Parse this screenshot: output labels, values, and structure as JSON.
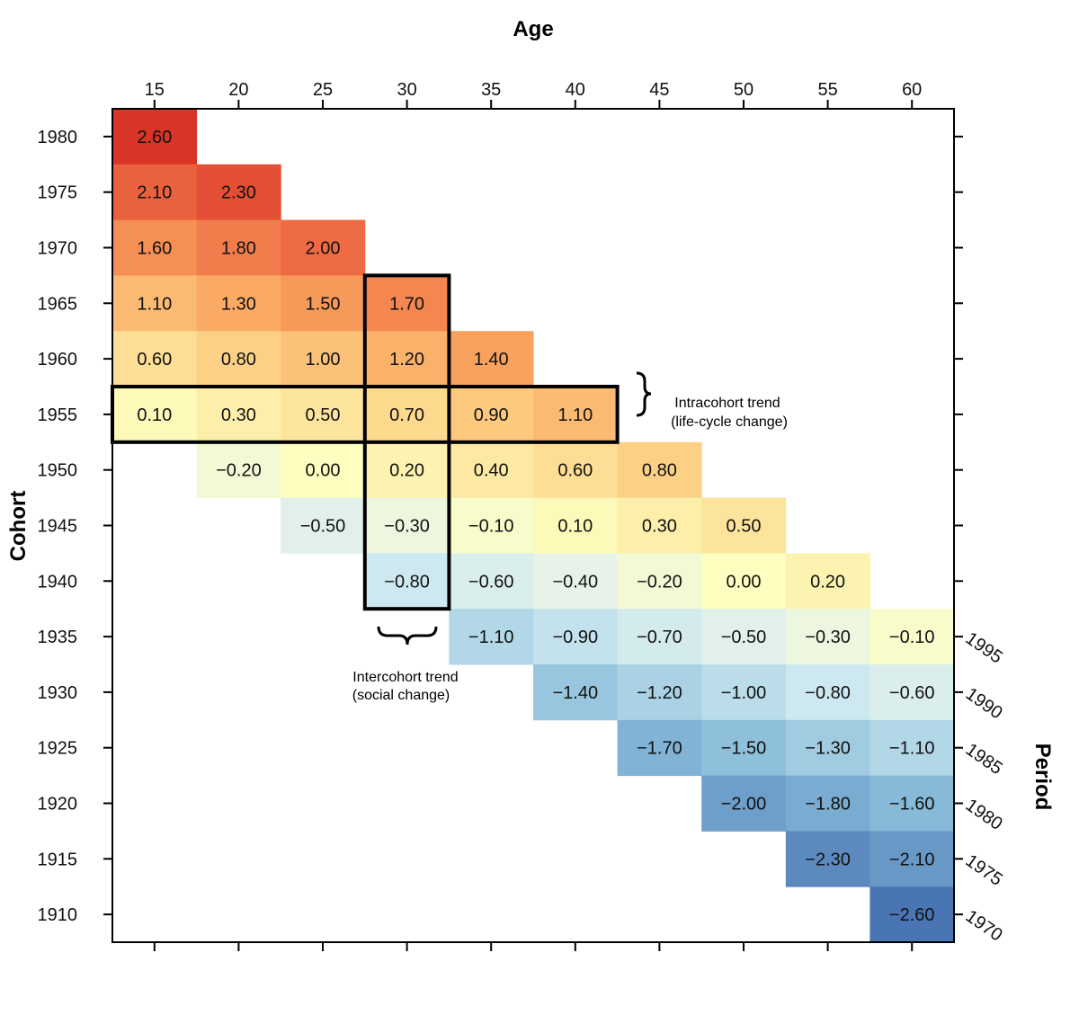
{
  "chart_data": {
    "type": "heatmap",
    "xlabel": "Age",
    "ylabel": "Cohort",
    "right_label": "Period",
    "ages": [
      15,
      20,
      25,
      30,
      35,
      40,
      45,
      50,
      55,
      60
    ],
    "cohorts": [
      1980,
      1975,
      1970,
      1965,
      1960,
      1955,
      1950,
      1945,
      1940,
      1935,
      1930,
      1925,
      1920,
      1915,
      1910
    ],
    "periods": [
      1995,
      1990,
      1985,
      1980,
      1975,
      1970
    ],
    "values": [
      [
        "2.60",
        null,
        null,
        null,
        null,
        null,
        null,
        null,
        null,
        null
      ],
      [
        "2.10",
        "2.30",
        null,
        null,
        null,
        null,
        null,
        null,
        null,
        null
      ],
      [
        "1.60",
        "1.80",
        "2.00",
        null,
        null,
        null,
        null,
        null,
        null,
        null
      ],
      [
        "1.10",
        "1.30",
        "1.50",
        "1.70",
        null,
        null,
        null,
        null,
        null,
        null
      ],
      [
        "0.60",
        "0.80",
        "1.00",
        "1.20",
        "1.40",
        null,
        null,
        null,
        null,
        null
      ],
      [
        "0.10",
        "0.30",
        "0.50",
        "0.70",
        "0.90",
        "1.10",
        null,
        null,
        null,
        null
      ],
      [
        null,
        "−0.20",
        "0.00",
        "0.20",
        "0.40",
        "0.60",
        "0.80",
        null,
        null,
        null
      ],
      [
        null,
        null,
        "−0.50",
        "−0.30",
        "−0.10",
        "0.10",
        "0.30",
        "0.50",
        null,
        null
      ],
      [
        null,
        null,
        null,
        "−0.80",
        "−0.60",
        "−0.40",
        "−0.20",
        "0.00",
        "0.20",
        null
      ],
      [
        null,
        null,
        null,
        null,
        "−1.10",
        "−0.90",
        "−0.70",
        "−0.50",
        "−0.30",
        "−0.10"
      ],
      [
        null,
        null,
        null,
        null,
        null,
        "−1.40",
        "−1.20",
        "−1.00",
        "−0.80",
        "−0.60"
      ],
      [
        null,
        null,
        null,
        null,
        null,
        null,
        "−1.70",
        "−1.50",
        "−1.30",
        "−1.10"
      ],
      [
        null,
        null,
        null,
        null,
        null,
        null,
        null,
        "−2.00",
        "−1.80",
        "−1.60"
      ],
      [
        null,
        null,
        null,
        null,
        null,
        null,
        null,
        null,
        "−2.30",
        "−2.10"
      ],
      [
        null,
        null,
        null,
        null,
        null,
        null,
        null,
        null,
        null,
        "−2.60"
      ]
    ],
    "color_scale": {
      "stops": [
        {
          "value": -2.6,
          "color": "#4a75b4"
        },
        {
          "value": -1.6,
          "color": "#86bad8"
        },
        {
          "value": -0.8,
          "color": "#cde8f0"
        },
        {
          "value": -0.4,
          "color": "#e7f3e8"
        },
        {
          "value": 0.0,
          "color": "#fdfec0"
        },
        {
          "value": 0.7,
          "color": "#fdd98d"
        },
        {
          "value": 1.4,
          "color": "#f9a25d"
        },
        {
          "value": 2.0,
          "color": "#ee6a43"
        },
        {
          "value": 2.6,
          "color": "#d83427"
        }
      ]
    },
    "highlight_intracohort": {
      "cohort": 1955,
      "age_from": 15,
      "age_to": 40
    },
    "highlight_intercohort": {
      "age": 30,
      "cohort_from": 1965,
      "cohort_to": 1940
    },
    "annotations": {
      "intracohort": [
        "Intracohort trend",
        "(life-cycle change)"
      ],
      "intercohort": [
        "Intercohort trend",
        "(social change)"
      ]
    },
    "grid": false
  }
}
